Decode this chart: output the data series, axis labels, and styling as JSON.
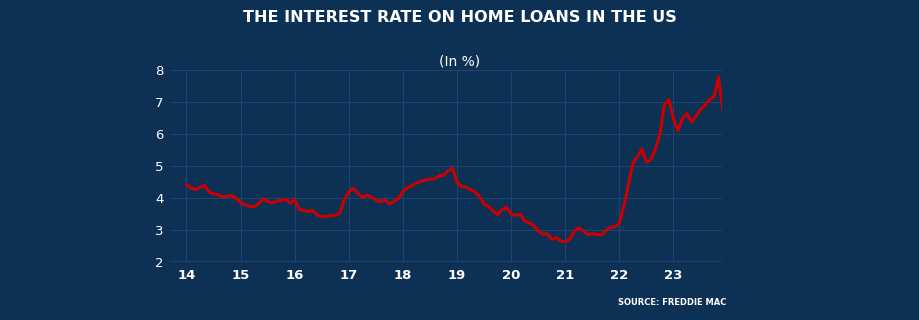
{
  "title": "THE INTEREST RATE ON HOME LOANS IN THE US",
  "subtitle": "(In %)",
  "source": "SOURCE: FREDDIE MAC",
  "background_color": "#0d3055",
  "line_color": "#cc0000",
  "grid_color": "#1e4470",
  "text_color": "#ffffff",
  "ylim": [
    2,
    8
  ],
  "yticks": [
    2,
    3,
    4,
    5,
    6,
    7,
    8
  ],
  "xtick_labels": [
    "14",
    "15",
    "16",
    "17",
    "18",
    "19",
    "20",
    "21",
    "22",
    "23"
  ],
  "line_width": 2.2,
  "rates": [
    4.43,
    4.32,
    4.28,
    4.34,
    4.41,
    4.2,
    4.14,
    4.12,
    4.05,
    4.07,
    4.09,
    4.01,
    3.87,
    3.8,
    3.76,
    3.73,
    3.84,
    3.98,
    3.91,
    3.86,
    3.91,
    3.94,
    3.97,
    3.85,
    3.97,
    3.65,
    3.62,
    3.59,
    3.62,
    3.48,
    3.44,
    3.43,
    3.46,
    3.47,
    3.54,
    3.96,
    4.2,
    4.32,
    4.16,
    4.03,
    4.1,
    4.05,
    3.95,
    3.9,
    3.94,
    3.83,
    3.9,
    3.99,
    4.22,
    4.33,
    4.4,
    4.47,
    4.54,
    4.57,
    4.61,
    4.6,
    4.71,
    4.72,
    4.87,
    4.94,
    4.51,
    4.37,
    4.35,
    4.28,
    4.2,
    4.06,
    3.82,
    3.75,
    3.61,
    3.49,
    3.66,
    3.72,
    3.51,
    3.47,
    3.5,
    3.31,
    3.23,
    3.16,
    2.98,
    2.88,
    2.9,
    2.72,
    2.77,
    2.67,
    2.65,
    2.73,
    2.97,
    3.08,
    2.98,
    2.87,
    2.9,
    2.87,
    2.86,
    2.99,
    3.1,
    3.11,
    3.22,
    3.76,
    4.42,
    5.11,
    5.3,
    5.54,
    5.13,
    5.22,
    5.55,
    6.02,
    6.94,
    7.08,
    6.48,
    6.12,
    6.5,
    6.65,
    6.39,
    6.57,
    6.79,
    6.9,
    7.09,
    7.18,
    7.79,
    6.67
  ],
  "n_points_per_year": 12
}
